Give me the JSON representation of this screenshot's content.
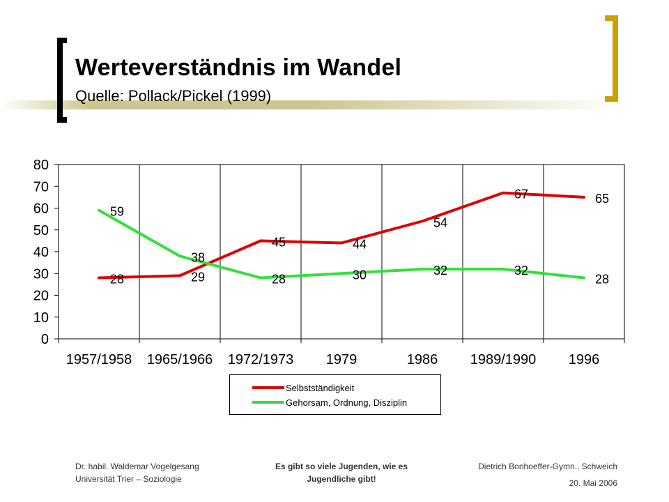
{
  "slide": {
    "title": "Werteverständnis im Wandel",
    "subtitle": "Quelle: Pollack/Pickel (1999)"
  },
  "chart_data": {
    "type": "line",
    "categories": [
      "1957/1958",
      "1965/1966",
      "1972/1973",
      "1979",
      "1986",
      "1989/1990",
      "1996"
    ],
    "series": [
      {
        "name": "Selbstständigkeit",
        "color": "#e00000",
        "values": [
          28,
          29,
          45,
          44,
          54,
          67,
          65
        ]
      },
      {
        "name": "Gehorsam, Ordnung, Disziplin",
        "color": "#33e03b",
        "values": [
          59,
          38,
          28,
          30,
          32,
          32,
          28
        ]
      }
    ],
    "ylim": [
      0,
      80
    ],
    "yticks": [
      0,
      10,
      20,
      30,
      40,
      50,
      60,
      70,
      80
    ],
    "grid": "vertical",
    "legend": "bottom"
  },
  "footer": {
    "left_line1": "Dr. habil. Waldemar Vogelgesang",
    "left_line2": "Universität Trier – Soziologie",
    "center_line1": "Es gibt so viele Jugenden, wie es",
    "center_line2": "Jugendliche gibt!",
    "right_line1": "Dietrich Bonhoeffer-Gymn., Schweich",
    "right_line2": "20. Mai 2006"
  }
}
